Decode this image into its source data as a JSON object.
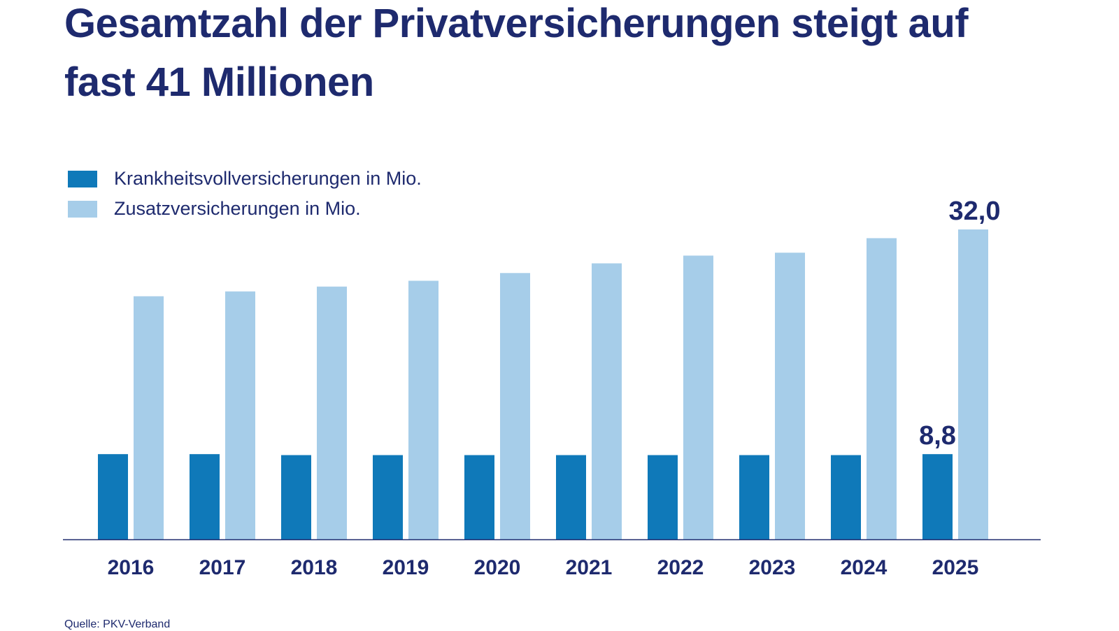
{
  "chart_data": {
    "type": "bar",
    "title": "Gesamtzahl der Privatversicherungen steigt auf fast 41 Millionen",
    "categories": [
      "2016",
      "2017",
      "2018",
      "2019",
      "2020",
      "2021",
      "2022",
      "2023",
      "2024",
      "2025"
    ],
    "series": [
      {
        "name": "Krankheitsvollversicherungen in Mio.",
        "color": "#0f79b9",
        "values": [
          8.8,
          8.8,
          8.7,
          8.7,
          8.7,
          8.7,
          8.7,
          8.7,
          8.7,
          8.8
        ]
      },
      {
        "name": "Zusatzversicherungen in Mio.",
        "color": "#a6cde9",
        "values": [
          25.1,
          25.6,
          26.1,
          26.7,
          27.5,
          28.5,
          29.3,
          29.6,
          31.1,
          32.0
        ]
      }
    ],
    "data_labels": [
      {
        "series": 0,
        "category": "2025",
        "text": "8,8"
      },
      {
        "series": 1,
        "category": "2025",
        "text": "32,0"
      }
    ],
    "ylim": [
      0,
      32.0
    ],
    "grid": false,
    "legend": "top-left",
    "xlabel": "",
    "ylabel": ""
  },
  "source": "Quelle: PKV-Verband"
}
